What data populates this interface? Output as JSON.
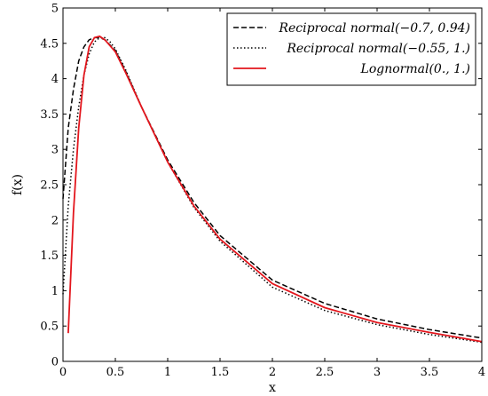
{
  "chart_data": {
    "type": "line",
    "title": "",
    "xlabel": "x",
    "ylabel": "f(x)",
    "xlim": [
      0,
      4
    ],
    "ylim": [
      0,
      5
    ],
    "x_ticks": [
      "0",
      "0.5",
      "1",
      "1.5",
      "2",
      "2.5",
      "3",
      "3.5",
      "4"
    ],
    "y_ticks": [
      "0",
      "0.5",
      "1",
      "1.5",
      "2",
      "2.5",
      "3",
      "3.5",
      "4",
      "4.5",
      "5"
    ],
    "grid": false,
    "legend_position": "top-right",
    "series": [
      {
        "name": "Reciprocal normal(−0.7, 0.94)",
        "style": "dashed",
        "color": "#000000",
        "x": [
          0,
          0.05,
          0.1,
          0.15,
          0.2,
          0.25,
          0.3,
          0.35,
          0.4,
          0.5,
          0.6,
          0.75,
          1,
          1.25,
          1.5,
          2,
          2.5,
          3,
          3.5,
          4
        ],
        "y": [
          2.3,
          3.3,
          3.85,
          4.25,
          4.45,
          4.55,
          4.58,
          4.58,
          4.55,
          4.4,
          4.1,
          3.6,
          2.85,
          2.25,
          1.78,
          1.15,
          0.82,
          0.6,
          0.45,
          0.33
        ]
      },
      {
        "name": "Reciprocal normal(−0.55, 1.)",
        "style": "dotted",
        "color": "#000000",
        "x": [
          0,
          0.05,
          0.1,
          0.15,
          0.2,
          0.25,
          0.3,
          0.35,
          0.4,
          0.45,
          0.5,
          0.6,
          0.75,
          1,
          1.25,
          1.5,
          2,
          2.5,
          3,
          3.5,
          4
        ],
        "y": [
          0.95,
          2.2,
          3.0,
          3.6,
          4.05,
          4.35,
          4.52,
          4.58,
          4.58,
          4.52,
          4.42,
          4.12,
          3.6,
          2.82,
          2.18,
          1.7,
          1.05,
          0.72,
          0.52,
          0.38,
          0.27
        ]
      },
      {
        "name": "Lognormal(0., 1.)",
        "style": "solid",
        "color": "#e3161d",
        "x": [
          0.05,
          0.1,
          0.15,
          0.2,
          0.25,
          0.3,
          0.35,
          0.4,
          0.5,
          0.6,
          0.75,
          1,
          1.25,
          1.5,
          2,
          2.5,
          3,
          3.5,
          4
        ],
        "y": [
          0.4,
          2.1,
          3.3,
          4.05,
          4.45,
          4.58,
          4.6,
          4.55,
          4.38,
          4.08,
          3.6,
          2.82,
          2.2,
          1.73,
          1.1,
          0.76,
          0.55,
          0.41,
          0.28
        ]
      }
    ]
  }
}
